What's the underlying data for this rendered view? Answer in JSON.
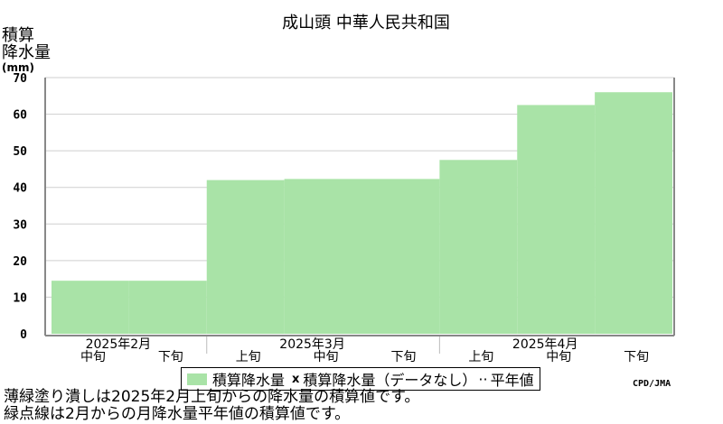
{
  "chart_data": {
    "type": "area",
    "title": "成山頭 中華人民共和国",
    "ylabel_line1": "積算",
    "ylabel_line2": "降水量",
    "ylabel_unit": "(mm)",
    "ylim": [
      0,
      70
    ],
    "yticks": [
      0,
      10,
      20,
      30,
      40,
      50,
      60,
      70
    ],
    "grid": true,
    "dekads": [
      {
        "label": "中旬",
        "value": 14.5
      },
      {
        "label": "下旬",
        "value": 14.5
      },
      {
        "label": "上旬",
        "value": 42
      },
      {
        "label": "中旬",
        "value": 42.3
      },
      {
        "label": "下旬",
        "value": 42.3
      },
      {
        "label": "上旬",
        "value": 47.5
      },
      {
        "label": "中旬",
        "value": 62.5
      },
      {
        "label": "下旬",
        "value": 66
      }
    ],
    "months": [
      "2025年2月",
      "2025年3月",
      "2025年4月"
    ],
    "series": [
      {
        "name": "積算降水量",
        "color": "#a9e3a7"
      },
      {
        "name": "積算降水量（データなし）",
        "color": "#000000"
      },
      {
        "name": "平年値",
        "color": "#000000"
      }
    ]
  },
  "legend": {
    "item1": "積算降水量",
    "mark": "x",
    "item2": "積算降水量（データなし）",
    "item3": "平年値"
  },
  "credit": "CPD/JMA",
  "notes": {
    "line1": "薄緑塗り潰しは2025年2月上旬からの降水量の積算値です。",
    "line2": "緑点線は2月からの月降水量平年値の積算値です。"
  }
}
